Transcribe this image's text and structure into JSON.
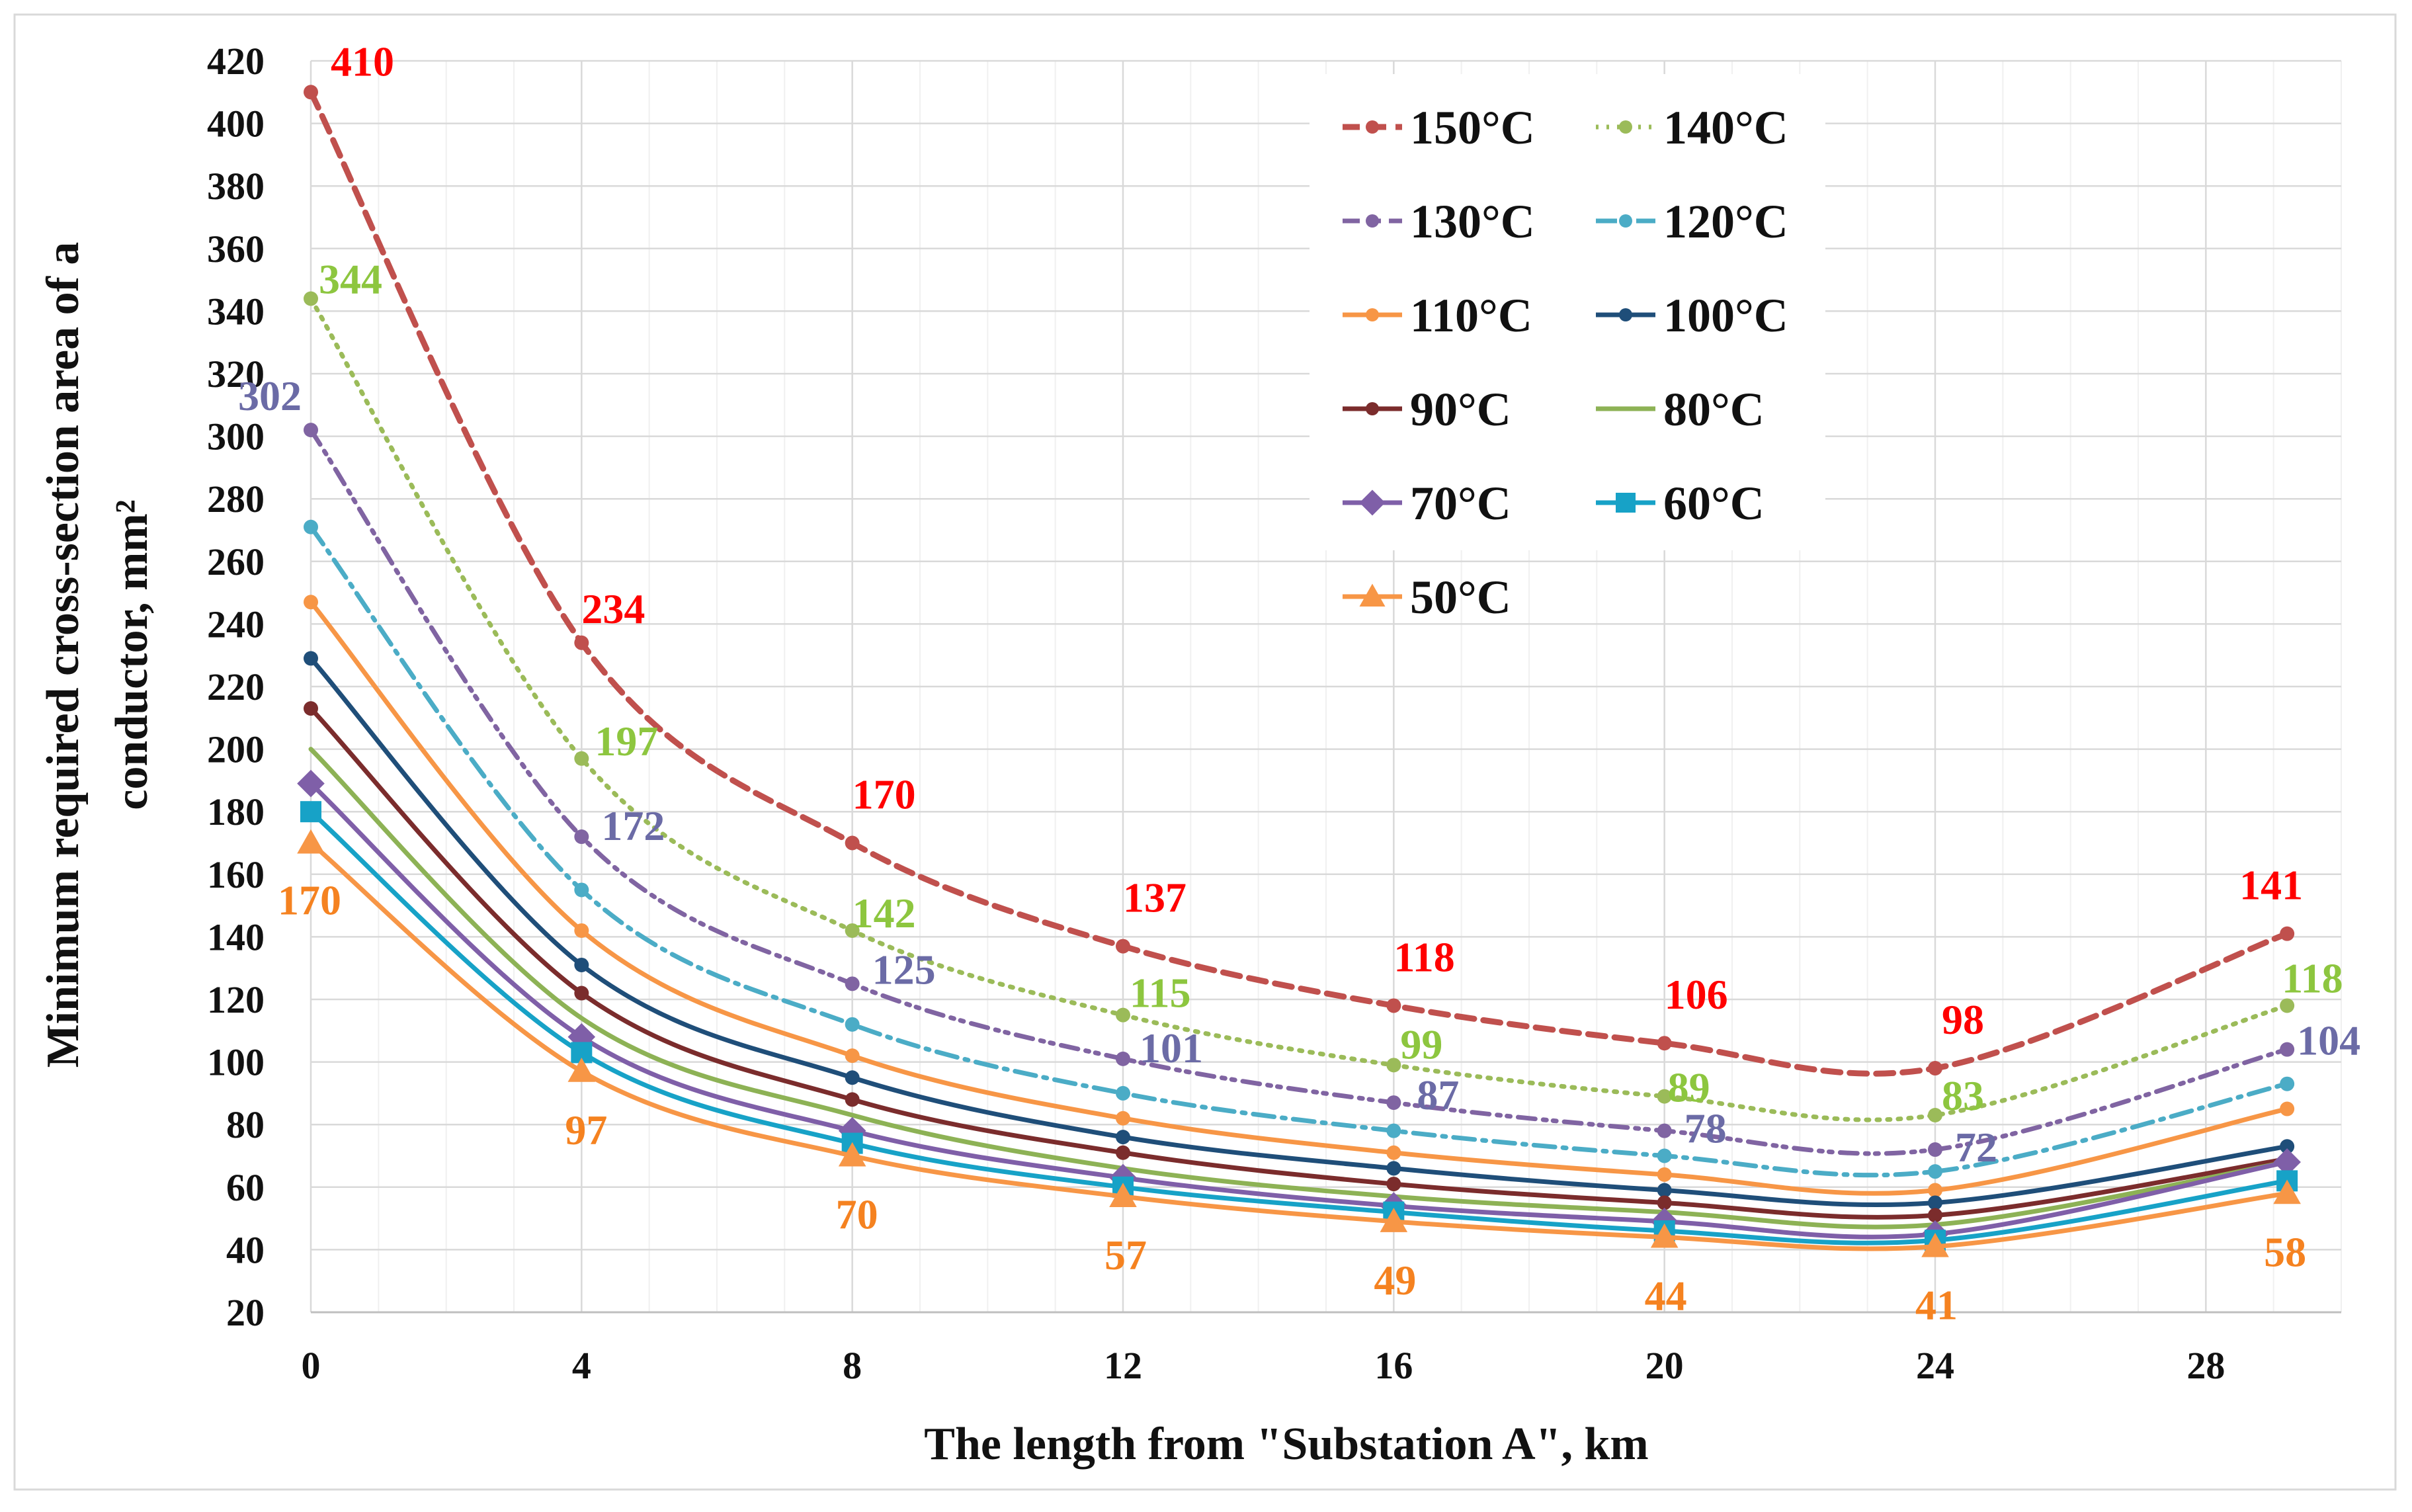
{
  "chart_data": {
    "type": "line",
    "title": "",
    "xlabel": "The length from \"Substation A\", km",
    "ylabel_line1": "Minimum required cross-section area of a",
    "ylabel_line2": "conductor, mm²",
    "xlim": [
      0,
      30
    ],
    "ylim": [
      20,
      420
    ],
    "xticks": [
      0,
      4,
      8,
      12,
      16,
      20,
      24,
      28
    ],
    "yticks": [
      20,
      40,
      60,
      80,
      100,
      120,
      140,
      160,
      180,
      200,
      220,
      240,
      260,
      280,
      300,
      320,
      340,
      360,
      380,
      400,
      420
    ],
    "grid": true,
    "legend_position": "top-right",
    "x": [
      0,
      4,
      8,
      12,
      16,
      20,
      24,
      29.2
    ],
    "series": [
      {
        "name": "150°C",
        "color": "#C0504D",
        "dash": "dashed",
        "marker": "dot",
        "values": [
          410,
          234,
          170,
          137,
          118,
          106,
          98,
          141
        ],
        "label_color": "#FF0000",
        "label_indices": [
          0,
          1,
          2,
          3,
          4,
          5,
          6,
          7
        ]
      },
      {
        "name": "140°C",
        "color": "#9BBB59",
        "dash": "dotted",
        "marker": "dot",
        "values": [
          344,
          197,
          142,
          115,
          99,
          89,
          83,
          118
        ],
        "label_color": "#8DC63F",
        "label_indices": [
          0,
          1,
          2,
          3,
          4,
          5,
          6,
          7
        ]
      },
      {
        "name": "130°C",
        "color": "#8064A2",
        "dash": "dashdotdot",
        "marker": "dot",
        "values": [
          302,
          172,
          125,
          101,
          87,
          78,
          72,
          104
        ],
        "label_color": "#6B6BA6",
        "label_indices": [
          0,
          1,
          2,
          3,
          4,
          5,
          6,
          7
        ]
      },
      {
        "name": "120°C",
        "color": "#4BACC6",
        "dash": "dashdot",
        "marker": "dot",
        "values": [
          271,
          155,
          112,
          90,
          78,
          70,
          65,
          93
        ],
        "label_indices": []
      },
      {
        "name": "110°C",
        "color": "#F79646",
        "dash": "solid",
        "marker": "dot",
        "values": [
          247,
          142,
          102,
          82,
          71,
          64,
          59,
          85
        ],
        "label_indices": []
      },
      {
        "name": "100°C",
        "color": "#1F4E79",
        "dash": "solid",
        "marker": "dot",
        "values": [
          229,
          131,
          95,
          76,
          66,
          59,
          55,
          73
        ],
        "label_indices": []
      },
      {
        "name": "90°C",
        "color": "#7B2C2C",
        "dash": "solid",
        "marker": "dot",
        "values": [
          213,
          122,
          88,
          71,
          61,
          55,
          51,
          69
        ],
        "label_indices": []
      },
      {
        "name": "80°C",
        "color": "#8DB255",
        "dash": "solid",
        "marker": "none",
        "values": [
          200,
          114,
          83,
          66,
          57,
          52,
          48,
          68
        ],
        "label_indices": []
      },
      {
        "name": "70°C",
        "color": "#7F5FA8",
        "dash": "solid",
        "marker": "diamond",
        "values": [
          189,
          108,
          78,
          63,
          54,
          49,
          45,
          68
        ],
        "label_indices": []
      },
      {
        "name": "60°C",
        "color": "#17A2C7",
        "dash": "solid",
        "marker": "square",
        "values": [
          180,
          103,
          74,
          60,
          52,
          46,
          43,
          62
        ],
        "label_indices": []
      },
      {
        "name": "50°C",
        "color": "#F79646",
        "dash": "solid",
        "marker": "triangle",
        "values": [
          170,
          97,
          70,
          57,
          49,
          44,
          41,
          58
        ],
        "label_color": "#F58220",
        "label_indices": [
          0,
          1,
          2,
          3,
          4,
          5,
          6,
          7
        ]
      }
    ]
  }
}
